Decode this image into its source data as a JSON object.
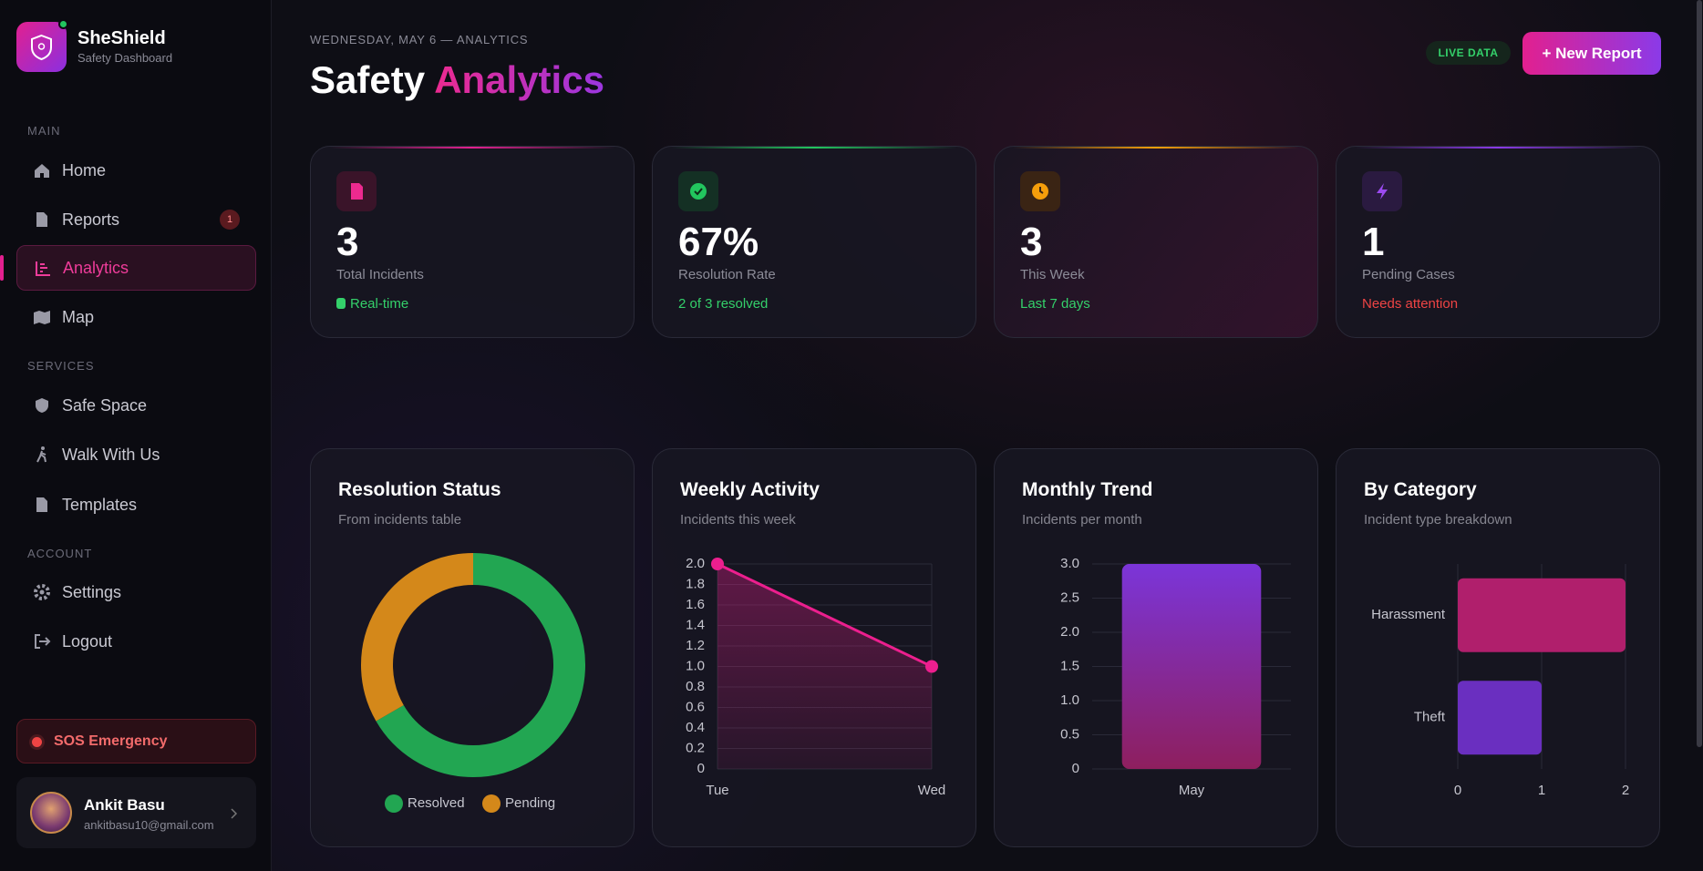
{
  "sidebar": {
    "brand": "SheShield",
    "tagline": "Safety Dashboard",
    "sections": [
      {
        "label": "MAIN",
        "items": [
          {
            "label": "Home"
          },
          {
            "label": "Reports",
            "badge": "1"
          },
          {
            "label": "Analytics"
          },
          {
            "label": "Map"
          }
        ]
      },
      {
        "label": "SERVICES",
        "items": [
          {
            "label": "Safe Space"
          },
          {
            "label": "Walk With Us"
          },
          {
            "label": "Templates"
          }
        ]
      },
      {
        "label": "ACCOUNT",
        "items": [
          {
            "label": "Settings"
          },
          {
            "label": "Logout"
          }
        ]
      }
    ],
    "sos": "SOS Emergency",
    "user": {
      "name": "Ankit Basu",
      "email": "ankitbasu10@gmail.com"
    }
  },
  "header": {
    "date": "WEDNESDAY, MAY 6 — ANALYTICS",
    "title_start": "Safety",
    "title_accent": "Analytics",
    "live": "LIVE DATA",
    "button": "+ New Report"
  },
  "stats": [
    {
      "value": "3",
      "label": "Total Incidents",
      "note": "Real-time"
    },
    {
      "value": "67%",
      "label": "Resolution Rate",
      "note": "2 of 3 resolved"
    },
    {
      "value": "3",
      "label": "This Week",
      "note": "Last 7 days"
    },
    {
      "value": "1",
      "label": "Pending Cases",
      "note": "Needs attention"
    }
  ],
  "chart_data": [
    {
      "type": "donut",
      "title": "Resolution Status",
      "subtitle": "From incidents table",
      "categories": [
        "Resolved",
        "Pending"
      ],
      "values": [
        2,
        1
      ],
      "colors": [
        "#22a652",
        "#d4881a"
      ]
    },
    {
      "type": "line",
      "title": "Weekly Activity",
      "subtitle": "Incidents this week",
      "categories": [
        "Tue",
        "Wed"
      ],
      "values": [
        2,
        1
      ],
      "color": "#ec1f8e",
      "ylim": [
        0,
        2
      ],
      "yticks": [
        0,
        0.2,
        0.4,
        0.6,
        0.8,
        {
          "value": 1,
          "label": "1.0"
        },
        1.2,
        1.4,
        1.6,
        1.8,
        {
          "value": 2,
          "label": "2.0"
        }
      ],
      "grid": true
    },
    {
      "type": "bar",
      "title": "Monthly Trend",
      "subtitle": "Incidents per month",
      "categories": [
        "May"
      ],
      "values": [
        3
      ],
      "gradient": [
        "#7b35d9",
        "#8e1f5e"
      ],
      "ylim": [
        0,
        3
      ],
      "yticks": [
        0,
        0.5,
        {
          "value": 1,
          "label": "1.0"
        },
        1.5,
        {
          "value": 2,
          "label": "2.0"
        },
        2.5,
        {
          "value": 3,
          "label": "3.0"
        }
      ],
      "grid": true
    },
    {
      "type": "hbar",
      "title": "By Category",
      "subtitle": "Incident type breakdown",
      "categories": [
        "Harassment",
        "Theft"
      ],
      "values": [
        2,
        1
      ],
      "colors": [
        "#b01f6c",
        "#6a2fc0"
      ],
      "xlim": [
        0,
        2
      ],
      "xticks": [
        0,
        1,
        2
      ],
      "grid": true
    }
  ]
}
